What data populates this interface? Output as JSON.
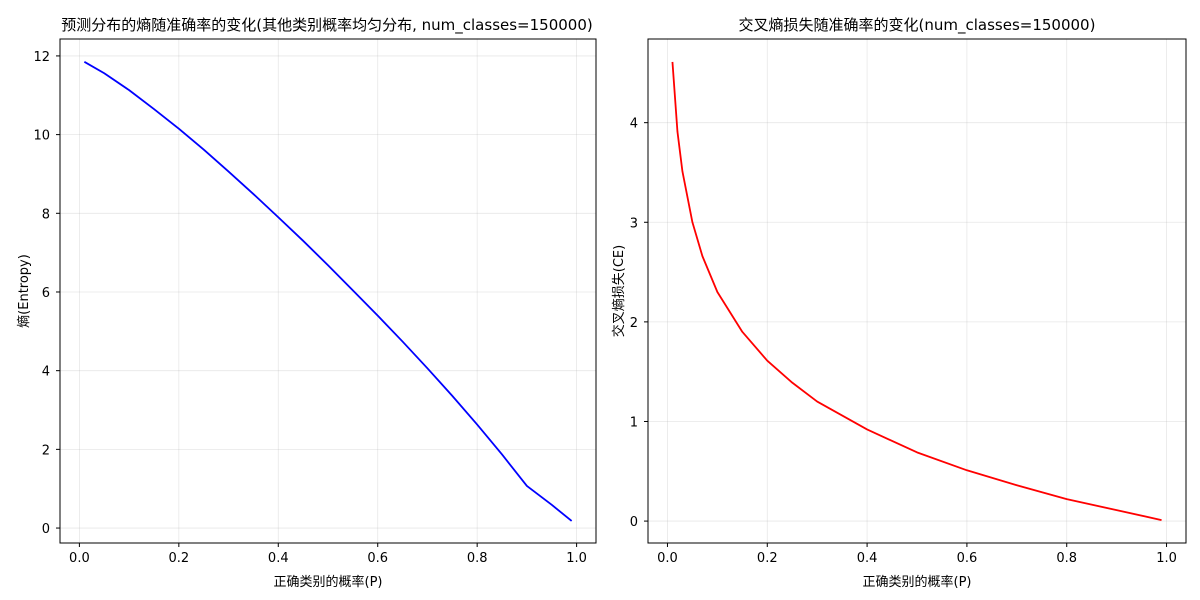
{
  "chart_data": [
    {
      "type": "line",
      "title": "预测分布的熵随准确率的变化(其他类别概率均匀分布, num_classes=150000)",
      "xlabel": "正确类别的概率(P)",
      "ylabel": "熵(Entropy)",
      "xlim": [
        -0.039,
        1.039
      ],
      "ylim": [
        -0.38,
        12.43
      ],
      "xticks": [
        0.0,
        0.2,
        0.4,
        0.6,
        0.8,
        1.0
      ],
      "xtick_labels": [
        "0.0",
        "0.2",
        "0.4",
        "0.6",
        "0.8",
        "1.0"
      ],
      "yticks": [
        0,
        2,
        4,
        6,
        8,
        10,
        12
      ],
      "ytick_labels": [
        "0",
        "2",
        "4",
        "6",
        "8",
        "10",
        "12"
      ],
      "grid": true,
      "series": [
        {
          "color": "#0000ff",
          "x": [
            0.01,
            0.05,
            0.1,
            0.15,
            0.2,
            0.25,
            0.3,
            0.35,
            0.4,
            0.45,
            0.5,
            0.55,
            0.6,
            0.65,
            0.7,
            0.75,
            0.8,
            0.85,
            0.9,
            0.95,
            0.99
          ],
          "values": [
            11.85,
            11.56,
            11.13,
            10.65,
            10.15,
            9.62,
            9.06,
            8.49,
            7.9,
            7.3,
            6.68,
            6.04,
            5.4,
            4.74,
            4.06,
            3.36,
            2.63,
            1.87,
            1.07,
            0.59,
            0.18
          ]
        }
      ]
    },
    {
      "type": "line",
      "title": "交叉熵损失随准确率的变化(num_classes=150000)",
      "xlabel": "正确类别的概率(P)",
      "ylabel": "交叉熵损失(CE)",
      "xlim": [
        -0.039,
        1.039
      ],
      "ylim": [
        -0.22,
        4.84
      ],
      "xticks": [
        0.0,
        0.2,
        0.4,
        0.6,
        0.8,
        1.0
      ],
      "xtick_labels": [
        "0.0",
        "0.2",
        "0.4",
        "0.6",
        "0.8",
        "1.0"
      ],
      "yticks": [
        0,
        1,
        2,
        3,
        4
      ],
      "ytick_labels": [
        "0",
        "1",
        "2",
        "3",
        "4"
      ],
      "grid": true,
      "series": [
        {
          "color": "#ff0000",
          "x": [
            0.01,
            0.02,
            0.03,
            0.05,
            0.07,
            0.1,
            0.15,
            0.2,
            0.25,
            0.3,
            0.4,
            0.5,
            0.6,
            0.7,
            0.8,
            0.9,
            0.99
          ],
          "values": [
            4.61,
            3.91,
            3.51,
            3.0,
            2.66,
            2.3,
            1.9,
            1.61,
            1.39,
            1.2,
            0.92,
            0.69,
            0.51,
            0.36,
            0.22,
            0.11,
            0.01
          ]
        }
      ]
    }
  ]
}
